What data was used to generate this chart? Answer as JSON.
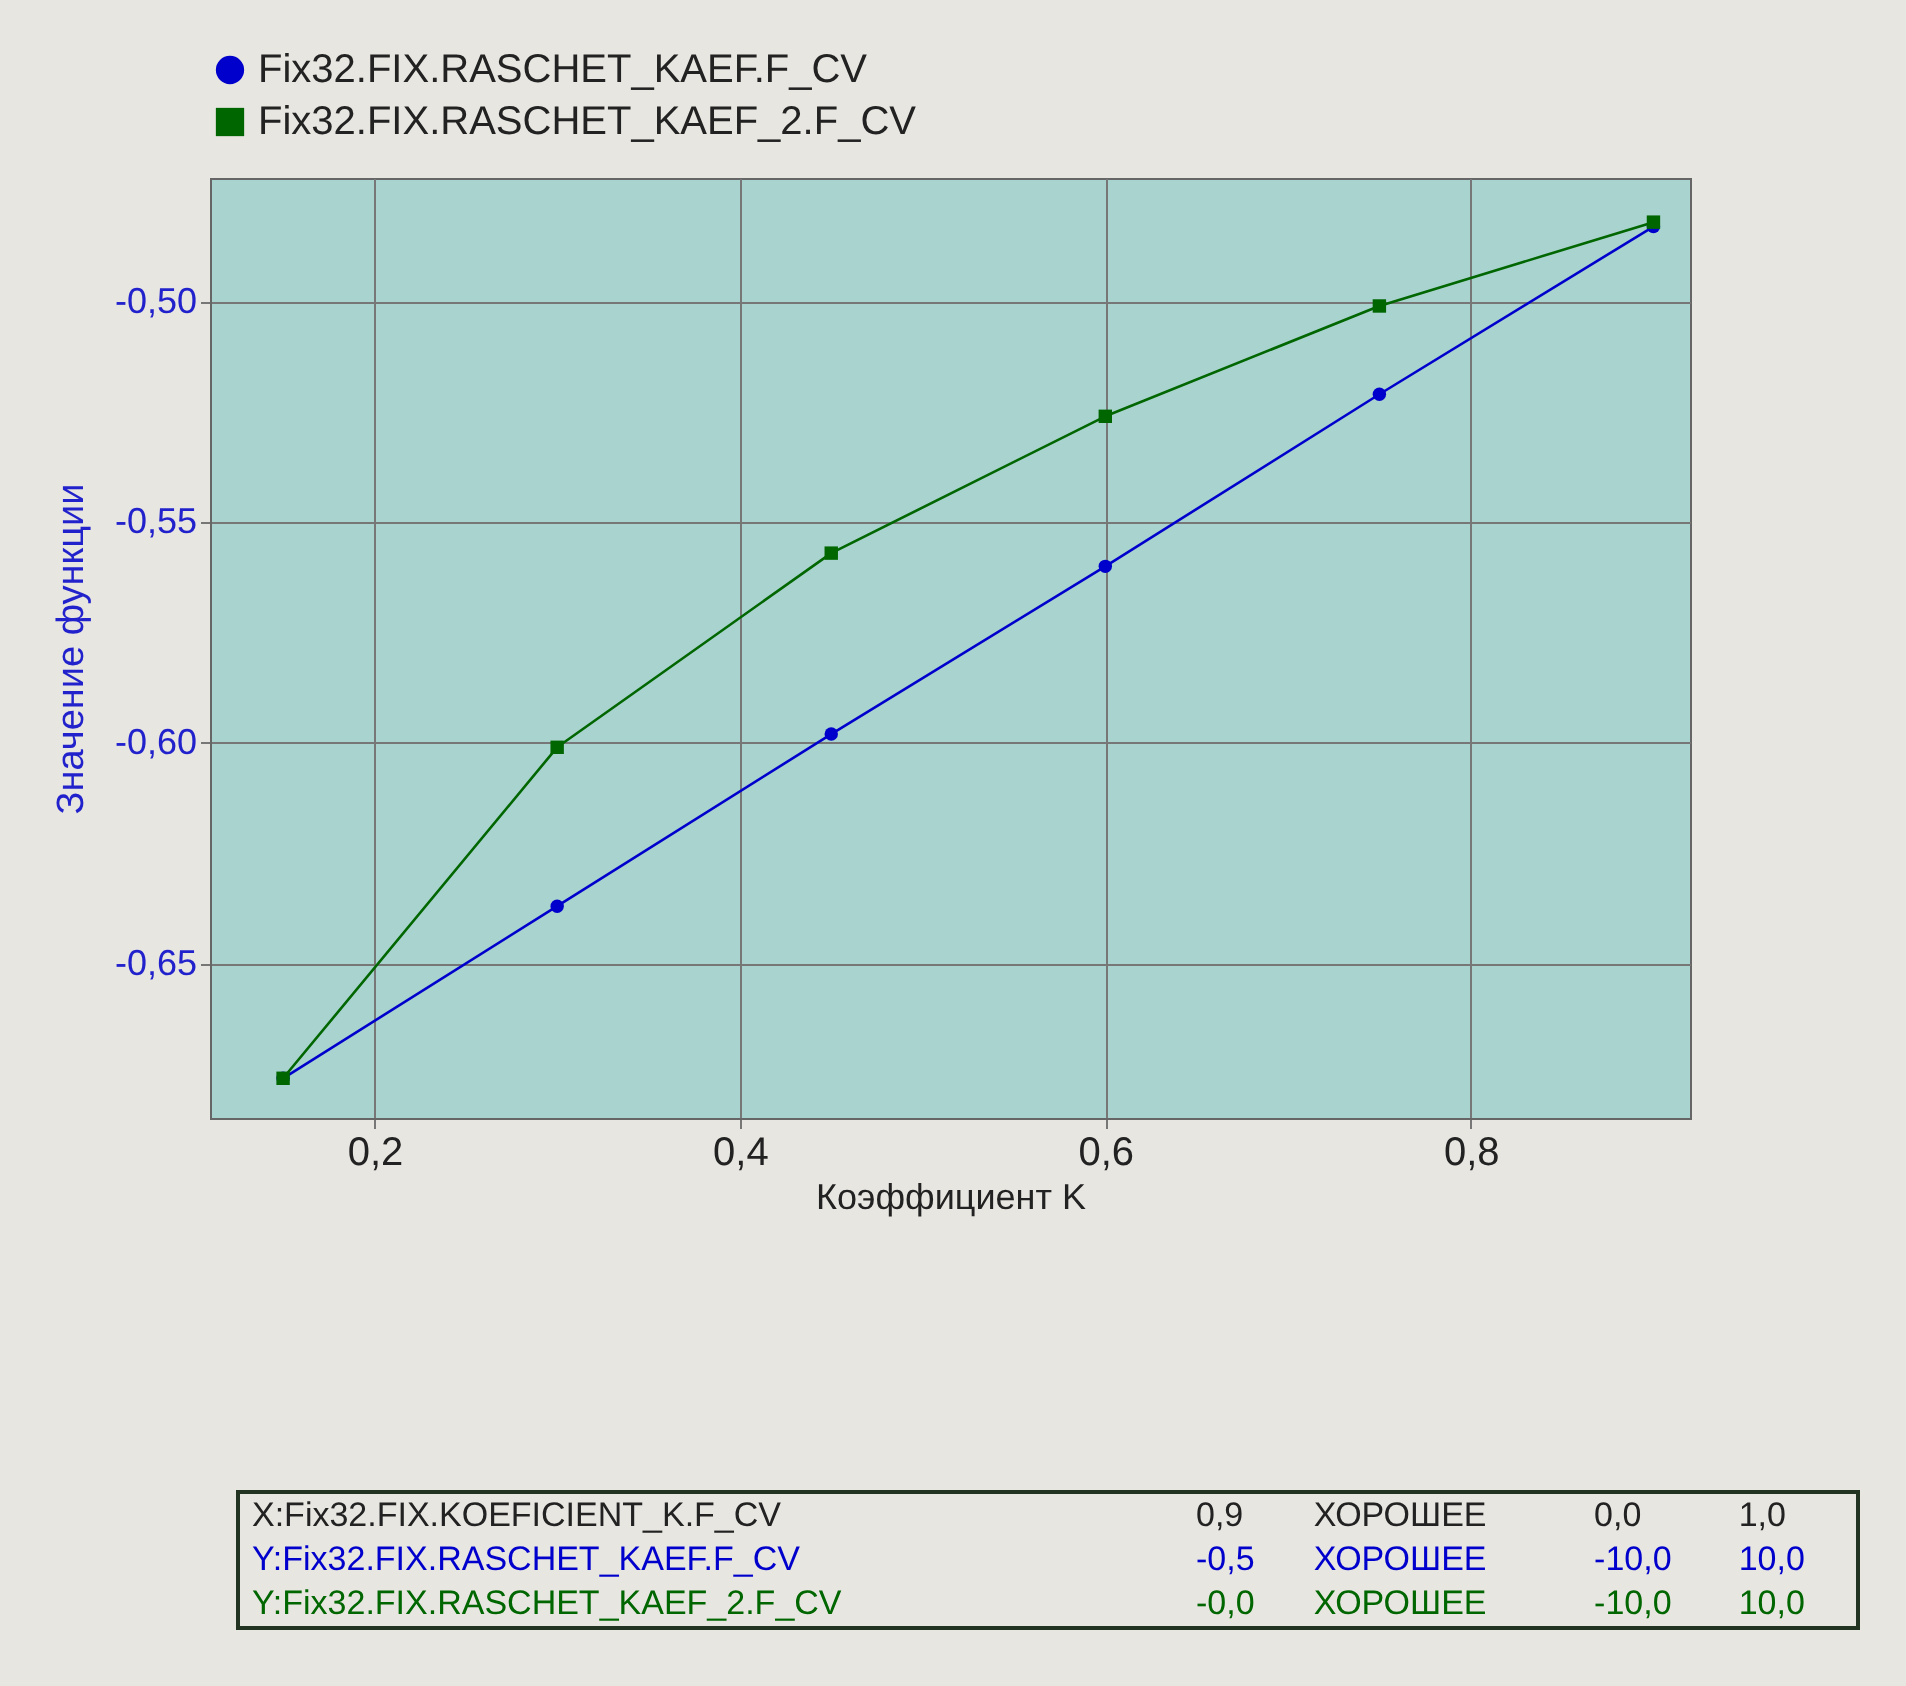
{
  "chart_data": {
    "type": "line",
    "xlabel": "Коэффициент K",
    "ylabel": "Значение функции",
    "x": [
      0.15,
      0.3,
      0.45,
      0.6,
      0.75,
      0.9
    ],
    "series": [
      {
        "name": "Fix32.FIX.RASCHET_KAEF.F_CV",
        "color": "#0000cc",
        "marker": "circle",
        "values": [
          -0.676,
          -0.637,
          -0.598,
          -0.56,
          -0.521,
          -0.483
        ]
      },
      {
        "name": "Fix32.FIX.RASCHET_KAEF_2.F_CV",
        "color": "#006600",
        "marker": "square",
        "values": [
          -0.676,
          -0.601,
          -0.557,
          -0.526,
          -0.501,
          -0.482
        ]
      }
    ],
    "xlim": [
      0.11,
      0.92
    ],
    "xticks": [
      {
        "value": 0.2,
        "label": "0,2"
      },
      {
        "value": 0.4,
        "label": "0,4"
      },
      {
        "value": 0.6,
        "label": "0,6"
      },
      {
        "value": 0.8,
        "label": "0,8"
      }
    ],
    "ylim": [
      -0.685,
      -0.472
    ],
    "yticks": [
      {
        "value": -0.65,
        "label": "-0,65"
      },
      {
        "value": -0.6,
        "label": "-0,60"
      },
      {
        "value": -0.55,
        "label": "-0,55"
      },
      {
        "value": -0.5,
        "label": "-0,50"
      }
    ],
    "grid": true,
    "legend": "top left",
    "line_style": "solid",
    "annotations": [
      "X:Fix32.FIX.KOEFICIENT_K.F_CV",
      "0,9",
      "ХОРОШЕЕ",
      "0,0",
      "1,0",
      "Y:Fix32.FIX.RASCHET_KAEF.F_CV",
      "-0,5",
      "ХОРОШЕЕ",
      "-10,0",
      "10,0",
      "Y:Fix32.FIX.RASCHET_KAEF_2.F_CV",
      "-0,0",
      "ХОРОШЕЕ",
      "-10,0",
      "10,0"
    ]
  }
}
